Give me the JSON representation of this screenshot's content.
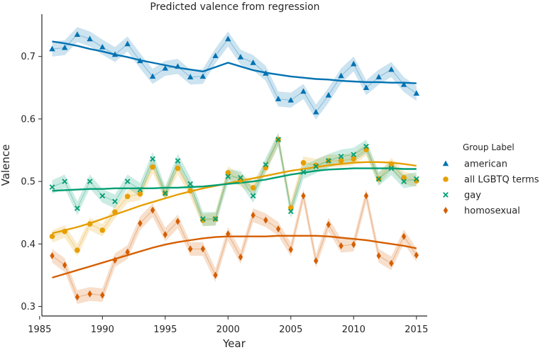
{
  "chart_data": {
    "type": "line",
    "title": "Predicted valence from regression",
    "xlabel": "Year",
    "ylabel": "Valence",
    "xlim": [
      1985,
      2015
    ],
    "ylim": [
      0.28,
      0.77
    ],
    "xticks": [
      1985,
      1990,
      1995,
      2000,
      2005,
      2010,
      2015
    ],
    "yticks": [
      0.3,
      0.4,
      0.5,
      0.6,
      0.7
    ],
    "x": [
      1986,
      1987,
      1988,
      1989,
      1990,
      1991,
      1992,
      1993,
      1994,
      1995,
      1996,
      1997,
      1998,
      1999,
      2000,
      2001,
      2002,
      2003,
      2004,
      2005,
      2006,
      2007,
      2008,
      2009,
      2010,
      2011,
      2012,
      2013,
      2014,
      2015
    ],
    "grid": false,
    "legend": {
      "title": "Group Label",
      "placement": "right"
    },
    "series": [
      {
        "name": "american",
        "color": "#0072b2",
        "marker": "triangle",
        "values": [
          0.712,
          0.714,
          0.735,
          0.728,
          0.715,
          0.703,
          0.72,
          0.693,
          0.668,
          0.681,
          0.684,
          0.667,
          0.668,
          0.701,
          0.728,
          0.699,
          0.69,
          0.673,
          0.632,
          0.63,
          0.644,
          0.611,
          0.638,
          0.669,
          0.688,
          0.65,
          0.667,
          0.679,
          0.655,
          0.641
        ],
        "ci_halfwidth": 0.012,
        "trend": [
          0.724,
          0.721,
          0.717,
          0.712,
          0.708,
          0.703,
          0.699,
          0.694,
          0.69,
          0.686,
          0.682,
          0.679,
          0.676,
          0.683,
          0.69,
          0.684,
          0.678,
          0.674,
          0.671,
          0.668,
          0.666,
          0.664,
          0.663,
          0.661,
          0.66,
          0.659,
          0.659,
          0.658,
          0.658,
          0.657
        ]
      },
      {
        "name": "all LGBTQ terms",
        "color": "#e69f00",
        "marker": "circle",
        "values": [
          0.412,
          0.42,
          0.39,
          0.432,
          0.422,
          0.451,
          0.476,
          0.48,
          0.523,
          0.481,
          0.521,
          0.485,
          0.438,
          0.44,
          0.514,
          0.502,
          0.49,
          0.522,
          0.567,
          0.458,
          0.53,
          0.526,
          0.533,
          0.533,
          0.536,
          0.551,
          0.504,
          0.528,
          0.506,
          0.501
        ],
        "ci_halfwidth": 0.01,
        "trend": [
          0.417,
          0.422,
          0.427,
          0.433,
          0.44,
          0.447,
          0.454,
          0.461,
          0.467,
          0.473,
          0.479,
          0.484,
          0.489,
          0.493,
          0.497,
          0.501,
          0.505,
          0.509,
          0.513,
          0.517,
          0.52,
          0.523,
          0.526,
          0.528,
          0.53,
          0.531,
          0.531,
          0.53,
          0.528,
          0.525
        ]
      },
      {
        "name": "gay",
        "color": "#009e73",
        "marker": "x",
        "values": [
          0.491,
          0.5,
          0.457,
          0.5,
          0.477,
          0.468,
          0.5,
          0.487,
          0.536,
          0.481,
          0.533,
          0.496,
          0.44,
          0.44,
          0.508,
          0.506,
          0.477,
          0.527,
          0.567,
          0.452,
          0.515,
          0.524,
          0.533,
          0.54,
          0.543,
          0.556,
          0.504,
          0.521,
          0.5,
          0.504
        ]
      },
      {
        "name": "homosexual",
        "color": "#d55e00",
        "marker": "diamond",
        "values": [
          0.381,
          0.366,
          0.315,
          0.32,
          0.318,
          0.374,
          0.387,
          0.433,
          0.454,
          0.415,
          0.436,
          0.392,
          0.392,
          0.35,
          0.416,
          0.379,
          0.446,
          0.438,
          0.424,
          0.391,
          0.477,
          0.373,
          0.431,
          0.397,
          0.399,
          0.477,
          0.381,
          0.369,
          0.412,
          0.382
        ],
        "ci_halfwidth": 0.011,
        "trend": [
          0.346,
          0.352,
          0.358,
          0.364,
          0.37,
          0.376,
          0.382,
          0.388,
          0.394,
          0.399,
          0.403,
          0.406,
          0.409,
          0.411,
          0.412,
          0.412,
          0.412,
          0.412,
          0.413,
          0.413,
          0.413,
          0.413,
          0.412,
          0.41,
          0.408,
          0.406,
          0.403,
          0.4,
          0.397,
          0.393
        ]
      }
    ],
    "extra_trend": {
      "applies_to": "gay",
      "values": [
        0.485,
        0.486,
        0.487,
        0.488,
        0.488,
        0.489,
        0.489,
        0.489,
        0.489,
        0.49,
        0.49,
        0.491,
        0.492,
        0.494,
        0.496,
        0.498,
        0.5,
        0.503,
        0.507,
        0.511,
        0.514,
        0.517,
        0.519,
        0.52,
        0.521,
        0.521,
        0.521,
        0.521,
        0.52,
        0.52
      ]
    }
  }
}
